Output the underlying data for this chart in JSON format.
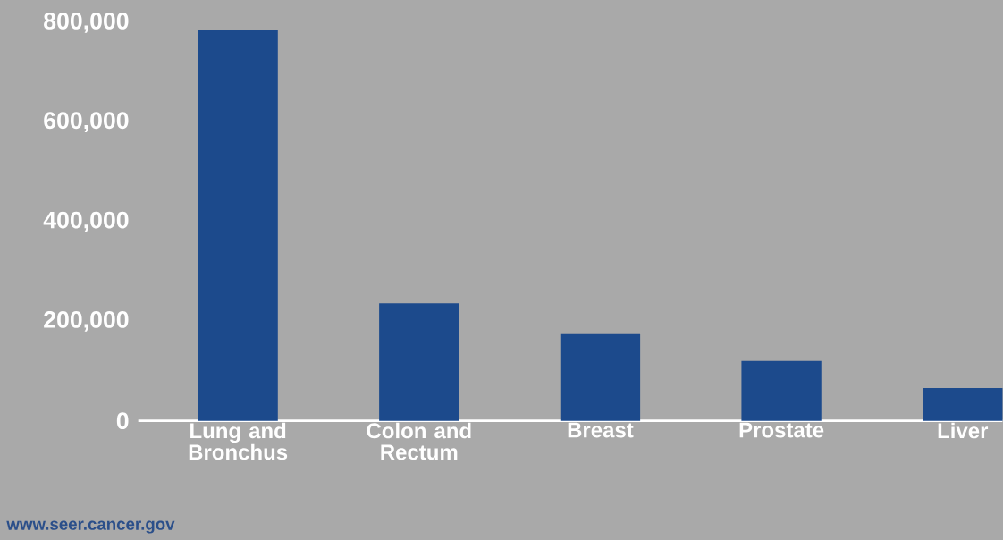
{
  "chart_data": {
    "type": "bar",
    "categories": [
      "Lung and Bronchus",
      "Colon and Rectum",
      "Breast",
      "Prostate",
      "Liver"
    ],
    "values": [
      785000,
      236000,
      174000,
      120000,
      66000
    ],
    "color": "#1c4a8c",
    "ylim": [
      0,
      800000
    ],
    "yticks": [
      {
        "value": 0,
        "label": "0"
      },
      {
        "value": 200000,
        "label": "200,000"
      },
      {
        "value": 400000,
        "label": "400,000"
      },
      {
        "value": 600000,
        "label": "600,000"
      },
      {
        "value": 800000,
        "label": "800,000"
      }
    ],
    "annotations": [
      "www.seer.cancer.gov"
    ]
  }
}
